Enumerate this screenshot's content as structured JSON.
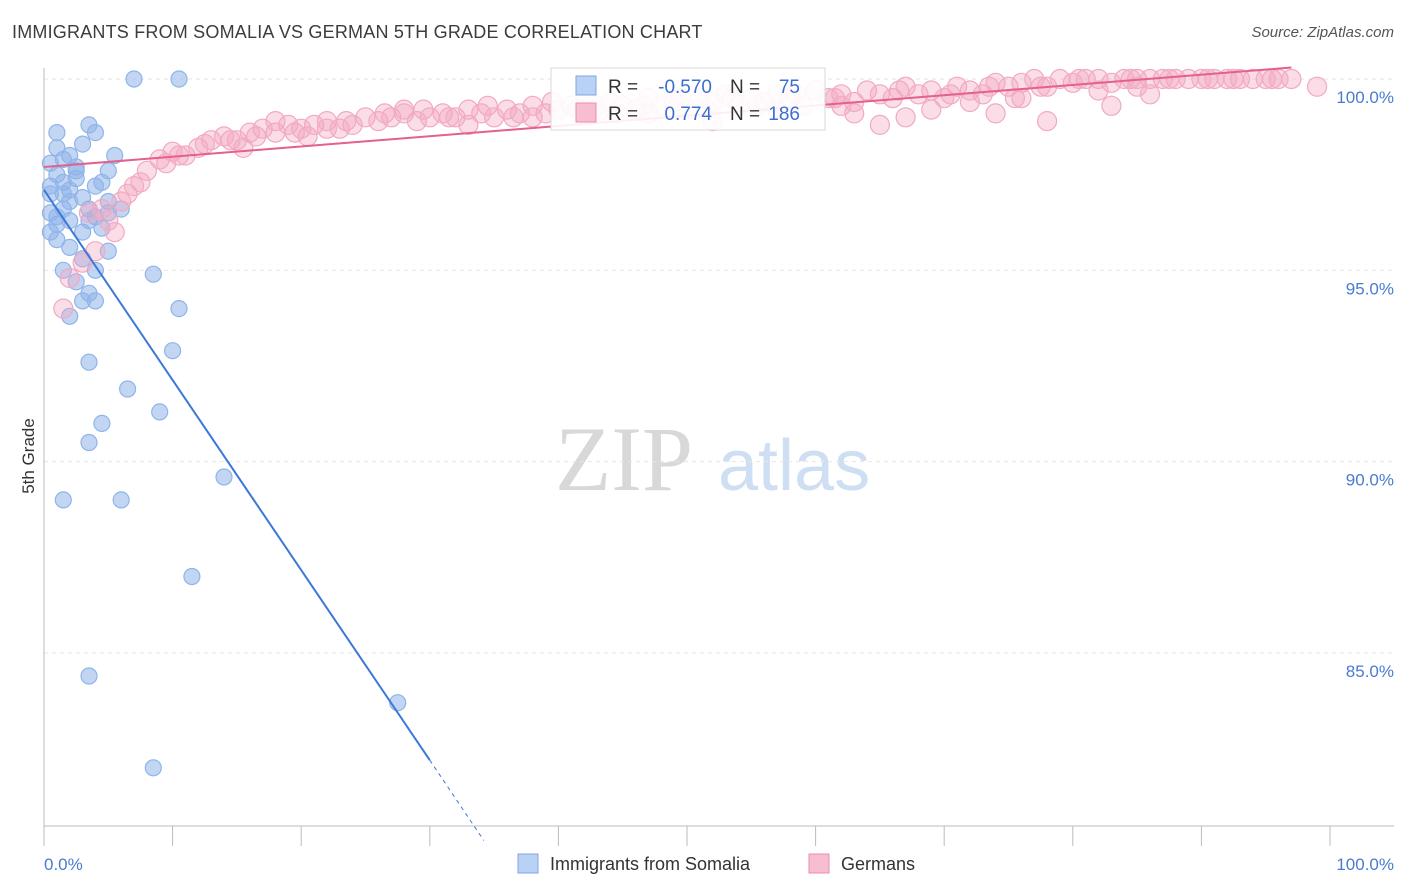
{
  "title": "IMMIGRANTS FROM SOMALIA VS GERMAN 5TH GRADE CORRELATION CHART",
  "source": "Source: ZipAtlas.com",
  "watermark": {
    "zip": "ZIP",
    "atlas": "atlas"
  },
  "chart_data": {
    "type": "scatter",
    "xlabel": "",
    "ylabel": "5th Grade",
    "xlim": [
      0,
      100
    ],
    "ylim": [
      80.5,
      100.5
    ],
    "x_tick_labels": {
      "left": "0.0%",
      "right": "100.0%"
    },
    "y_ticks": [
      {
        "value": 100,
        "label": "100.0%"
      },
      {
        "value": 95,
        "label": "95.0%"
      },
      {
        "value": 90,
        "label": "90.0%"
      },
      {
        "value": 85,
        "label": "85.0%"
      }
    ],
    "stats": {
      "r_label": "R =",
      "n_label": "N =",
      "rows": [
        {
          "series": "Immigrants from Somalia",
          "r": "-0.570",
          "n": "75"
        },
        {
          "series": "Germans",
          "r": "0.774",
          "n": "186"
        }
      ]
    },
    "series": [
      {
        "name": "Immigrants from Somalia",
        "color": "#8fb4ea",
        "line_color": "#3b78d8",
        "trend": {
          "x0": 0,
          "y0": 97.1,
          "x1": 30,
          "y1": 82.2,
          "dash_to_x": 34.2,
          "dash_to_y": 80.1
        },
        "points": [
          [
            7,
            100
          ],
          [
            10.5,
            100
          ],
          [
            0.5,
            97.8
          ],
          [
            1,
            98.2
          ],
          [
            1.5,
            97.9
          ],
          [
            2,
            98
          ],
          [
            2.5,
            97.7
          ],
          [
            3,
            98.3
          ],
          [
            3.5,
            98.8
          ],
          [
            4,
            98.6
          ],
          [
            4.5,
            97.3
          ],
          [
            5,
            97.6
          ],
          [
            5.5,
            98
          ],
          [
            1,
            97.5
          ],
          [
            1.5,
            97
          ],
          [
            2,
            96.8
          ],
          [
            2.5,
            97.4
          ],
          [
            3,
            96.9
          ],
          [
            3.5,
            96.6
          ],
          [
            4,
            97.2
          ],
          [
            5,
            96.8
          ],
          [
            0.5,
            96.5
          ],
          [
            1,
            96.2
          ],
          [
            1.5,
            96.6
          ],
          [
            2,
            96.3
          ],
          [
            3,
            96
          ],
          [
            4,
            96.4
          ],
          [
            5,
            96.5
          ],
          [
            6,
            96.6
          ],
          [
            0.5,
            96
          ],
          [
            1,
            95.8
          ],
          [
            2,
            95.6
          ],
          [
            3,
            95.3
          ],
          [
            4,
            95
          ],
          [
            5,
            95.5
          ],
          [
            1.5,
            95
          ],
          [
            2.5,
            94.7
          ],
          [
            3.5,
            94.4
          ],
          [
            3,
            94.2
          ],
          [
            4,
            94.2
          ],
          [
            8.5,
            94.9
          ],
          [
            2,
            93.8
          ],
          [
            10.5,
            94
          ],
          [
            3.5,
            92.6
          ],
          [
            10,
            92.9
          ],
          [
            6.5,
            91.9
          ],
          [
            9,
            91.3
          ],
          [
            4.5,
            91
          ],
          [
            3.5,
            90.5
          ],
          [
            14,
            89.6
          ],
          [
            1.5,
            89
          ],
          [
            6,
            89
          ],
          [
            11.5,
            87
          ],
          [
            3.5,
            84.4
          ],
          [
            27.5,
            83.7
          ],
          [
            8.5,
            82
          ],
          [
            0.5,
            97
          ],
          [
            1,
            96.4
          ],
          [
            2,
            97.1
          ],
          [
            2.5,
            97.6
          ],
          [
            3.5,
            96.3
          ],
          [
            4.5,
            96.1
          ],
          [
            1,
            98.6
          ],
          [
            0.5,
            97.2
          ],
          [
            1.5,
            97.3
          ]
        ]
      },
      {
        "name": "Germans",
        "color": "#f2a9c2",
        "line_color": "#e4608d",
        "trend": {
          "x0": 0,
          "y0": 97.7,
          "x1": 97,
          "y1": 100.3
        },
        "points": [
          [
            2,
            94.8
          ],
          [
            1.5,
            94
          ],
          [
            3,
            95.2
          ],
          [
            4,
            95.5
          ],
          [
            5,
            96.3
          ],
          [
            6,
            96.8
          ],
          [
            7,
            97.2
          ],
          [
            8,
            97.6
          ],
          [
            9,
            97.9
          ],
          [
            10,
            98.1
          ],
          [
            11,
            98
          ],
          [
            12,
            98.2
          ],
          [
            13,
            98.4
          ],
          [
            14,
            98.5
          ],
          [
            15,
            98.4
          ],
          [
            16,
            98.6
          ],
          [
            17,
            98.7
          ],
          [
            18,
            98.6
          ],
          [
            19,
            98.8
          ],
          [
            20,
            98.7
          ],
          [
            21,
            98.8
          ],
          [
            22,
            98.9
          ],
          [
            23,
            98.7
          ],
          [
            24,
            98.8
          ],
          [
            25,
            99
          ],
          [
            26,
            98.9
          ],
          [
            27,
            99
          ],
          [
            28,
            99.1
          ],
          [
            29,
            98.9
          ],
          [
            30,
            99
          ],
          [
            31,
            99.1
          ],
          [
            32,
            99
          ],
          [
            33,
            99.2
          ],
          [
            34,
            99.1
          ],
          [
            35,
            99
          ],
          [
            36,
            99.2
          ],
          [
            37,
            99.1
          ],
          [
            38,
            99.3
          ],
          [
            39,
            99.1
          ],
          [
            40,
            99.2
          ],
          [
            41,
            99.3
          ],
          [
            42,
            99.2
          ],
          [
            43,
            99.1
          ],
          [
            44,
            99.4
          ],
          [
            45,
            99.3
          ],
          [
            46,
            99.2
          ],
          [
            47,
            99.5
          ],
          [
            48,
            99.3
          ],
          [
            49,
            99.4
          ],
          [
            50,
            99.2
          ],
          [
            51,
            99.5
          ],
          [
            52,
            99.4
          ],
          [
            53,
            99.6
          ],
          [
            54,
            99.3
          ],
          [
            55,
            99.5
          ],
          [
            56,
            99.4
          ],
          [
            57,
            99.6
          ],
          [
            58,
            99.5
          ],
          [
            59,
            99.3
          ],
          [
            60,
            99.7
          ],
          [
            61,
            99.5
          ],
          [
            62,
            99.6
          ],
          [
            63,
            99.4
          ],
          [
            64,
            99.7
          ],
          [
            65,
            99.6
          ],
          [
            66,
            99.5
          ],
          [
            67,
            99.8
          ],
          [
            68,
            99.6
          ],
          [
            69,
            99.7
          ],
          [
            70,
            99.5
          ],
          [
            71,
            99.8
          ],
          [
            72,
            99.7
          ],
          [
            73,
            99.6
          ],
          [
            74,
            99.9
          ],
          [
            75,
            99.8
          ],
          [
            76,
            99.9
          ],
          [
            77,
            100
          ],
          [
            78,
            99.8
          ],
          [
            79,
            100
          ],
          [
            80,
            99.9
          ],
          [
            81,
            100
          ],
          [
            82,
            100
          ],
          [
            83,
            99.9
          ],
          [
            84,
            100
          ],
          [
            85,
            100
          ],
          [
            86,
            100
          ],
          [
            87,
            100
          ],
          [
            88,
            100
          ],
          [
            89,
            100
          ],
          [
            90,
            100
          ],
          [
            91,
            100
          ],
          [
            92,
            100
          ],
          [
            93,
            100
          ],
          [
            94,
            100
          ],
          [
            95,
            100
          ],
          [
            96,
            100
          ],
          [
            97,
            100
          ],
          [
            99,
            99.8
          ],
          [
            18,
            98.9
          ],
          [
            22,
            98.7
          ],
          [
            28,
            99.2
          ],
          [
            33,
            98.8
          ],
          [
            38,
            99
          ],
          [
            43,
            99.3
          ],
          [
            47,
            99.1
          ],
          [
            52,
            98.9
          ],
          [
            57,
            99.2
          ],
          [
            62,
            99.3
          ],
          [
            63,
            99.1
          ],
          [
            65,
            98.8
          ],
          [
            67,
            99
          ],
          [
            69,
            99.2
          ],
          [
            72,
            99.4
          ],
          [
            74,
            99.1
          ],
          [
            76,
            99.5
          ],
          [
            78,
            98.9
          ],
          [
            82,
            99.7
          ],
          [
            83,
            99.3
          ],
          [
            85,
            99.8
          ],
          [
            86,
            99.6
          ],
          [
            5.5,
            96
          ],
          [
            7.5,
            97.3
          ],
          [
            9.5,
            97.8
          ],
          [
            3.5,
            96.5
          ],
          [
            4.5,
            96.6
          ],
          [
            6.5,
            97
          ],
          [
            10.5,
            98
          ],
          [
            12.5,
            98.3
          ],
          [
            14.5,
            98.4
          ],
          [
            15.5,
            98.2
          ],
          [
            16.5,
            98.5
          ],
          [
            19.5,
            98.6
          ],
          [
            20.5,
            98.5
          ],
          [
            23.5,
            98.9
          ],
          [
            26.5,
            99.1
          ],
          [
            29.5,
            99.2
          ],
          [
            31.5,
            99
          ],
          [
            34.5,
            99.3
          ],
          [
            36.5,
            99
          ],
          [
            39.5,
            99.4
          ],
          [
            41.5,
            99.2
          ],
          [
            44.5,
            99.1
          ],
          [
            46.5,
            99.3
          ],
          [
            49.5,
            99.5
          ],
          [
            51.5,
            99.2
          ],
          [
            53.5,
            99.5
          ],
          [
            55.5,
            99.3
          ],
          [
            58.5,
            99.6
          ],
          [
            61.5,
            99.5
          ],
          [
            66.5,
            99.7
          ],
          [
            70.5,
            99.6
          ],
          [
            73.5,
            99.8
          ],
          [
            75.5,
            99.5
          ],
          [
            77.5,
            99.8
          ],
          [
            80.5,
            100
          ],
          [
            84.5,
            100
          ],
          [
            87.5,
            100
          ],
          [
            90.5,
            100
          ],
          [
            92.5,
            100
          ],
          [
            95.5,
            100
          ]
        ]
      }
    ]
  }
}
